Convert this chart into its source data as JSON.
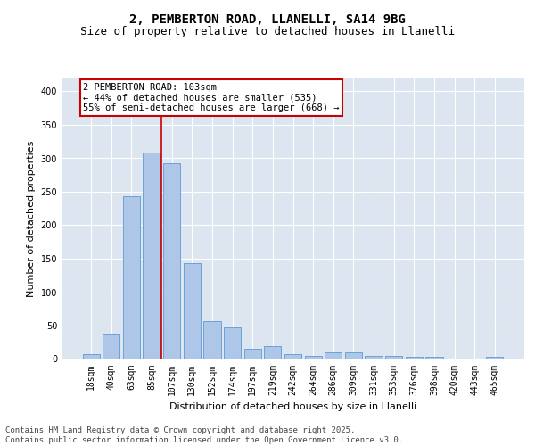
{
  "title1": "2, PEMBERTON ROAD, LLANELLI, SA14 9BG",
  "title2": "Size of property relative to detached houses in Llanelli",
  "xlabel": "Distribution of detached houses by size in Llanelli",
  "ylabel": "Number of detached properties",
  "categories": [
    "18sqm",
    "40sqm",
    "63sqm",
    "85sqm",
    "107sqm",
    "130sqm",
    "152sqm",
    "174sqm",
    "197sqm",
    "219sqm",
    "242sqm",
    "264sqm",
    "286sqm",
    "309sqm",
    "331sqm",
    "353sqm",
    "376sqm",
    "398sqm",
    "420sqm",
    "443sqm",
    "465sqm"
  ],
  "values": [
    7,
    38,
    243,
    308,
    293,
    143,
    57,
    47,
    16,
    19,
    8,
    5,
    10,
    10,
    5,
    5,
    3,
    4,
    1,
    1,
    3
  ],
  "bar_color": "#aec6e8",
  "bar_edge_color": "#5b9bd5",
  "background_color": "#dde6f0",
  "grid_color": "#ffffff",
  "annotation_line1": "2 PEMBERTON ROAD: 103sqm",
  "annotation_line2": "← 44% of detached houses are smaller (535)",
  "annotation_line3": "55% of semi-detached houses are larger (668) →",
  "annotation_box_facecolor": "#ffffff",
  "annotation_box_edgecolor": "#cc0000",
  "redline_x": 3.5,
  "ylim": [
    0,
    420
  ],
  "yticks": [
    0,
    50,
    100,
    150,
    200,
    250,
    300,
    350,
    400
  ],
  "footer": "Contains HM Land Registry data © Crown copyright and database right 2025.\nContains public sector information licensed under the Open Government Licence v3.0.",
  "title1_fontsize": 10,
  "title2_fontsize": 9,
  "axis_label_fontsize": 8,
  "tick_fontsize": 7,
  "annotation_fontsize": 7.5,
  "footer_fontsize": 6.5
}
